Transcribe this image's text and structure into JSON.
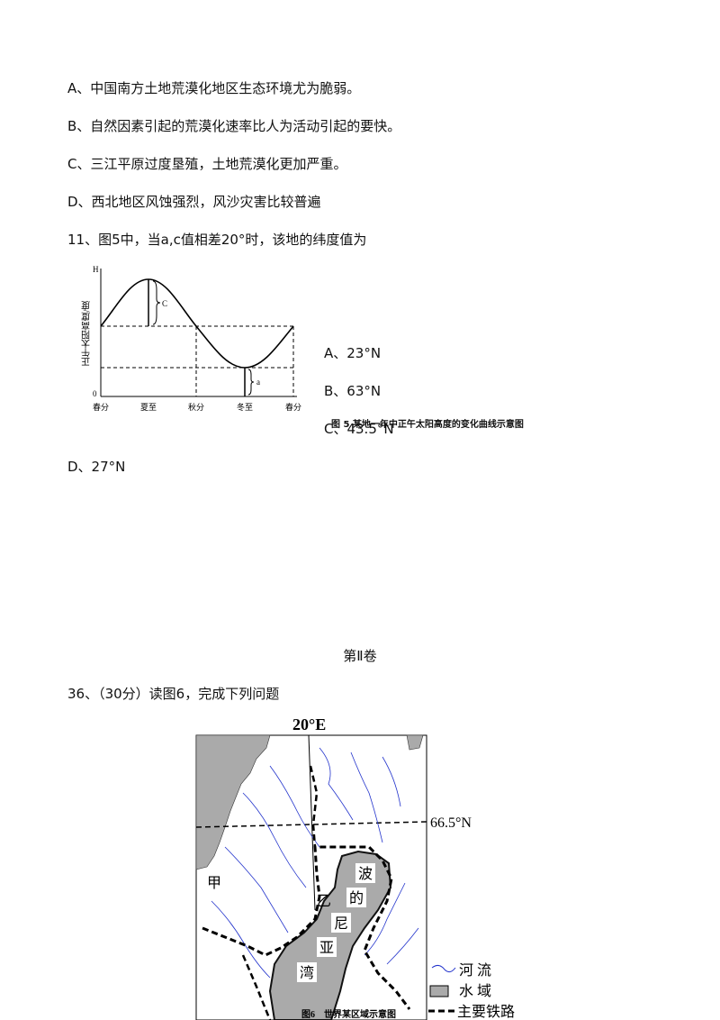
{
  "question_10_options": [
    "A、中国南方土地荒漠化地区生态环境尤为脆弱。",
    "B、自然因素引起的荒漠化速率比人为活动引起的要快。",
    "C、三江平原过度垦殖，土地荒漠化更加严重。",
    "D、西北地区风蚀强烈，风沙灾害比较普遍"
  ],
  "question_11": {
    "stem": "11、图5中，当a,c值相差20°时，该地的纬度值为",
    "options": [
      "A、23°N",
      "B、63°N",
      "C、43.5°N",
      "D、27°N"
    ],
    "figure": {
      "y_axis_top": "H",
      "y_axis_label": "正午太阳高度/度",
      "origin": "0",
      "x_labels": [
        "春分",
        "夏至",
        "秋分",
        "冬至",
        "春分"
      ],
      "mark_c": "C",
      "mark_a": "a",
      "caption": "图 5 某地一年中正午太阳高度的变化曲线示意图"
    }
  },
  "section_title": "第Ⅱ卷",
  "question_36": {
    "stem": "36、（30分）读图6，完成下列问题",
    "figure": {
      "longitude": "20°E",
      "latitude": "66.5°N",
      "label_jia": "甲",
      "label_yi": "乙",
      "bay_chars": [
        "波",
        "的",
        "尼",
        "亚",
        "湾"
      ],
      "legend": [
        "河 流",
        "水 域",
        "主要铁路"
      ],
      "caption": "图6　世界某区域示意图"
    }
  }
}
